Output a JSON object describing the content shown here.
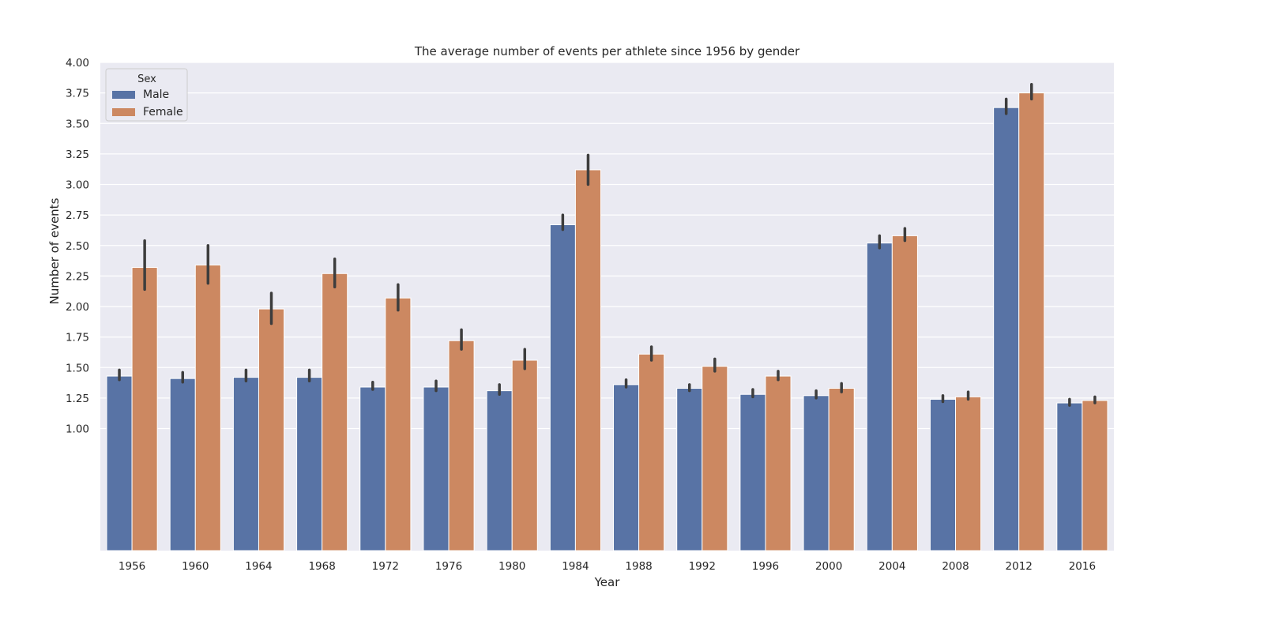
{
  "chart_data": {
    "type": "bar",
    "title": "The average number of events per athlete since 1956 by gender",
    "xlabel": "Year",
    "ylabel": "Number of events",
    "categories": [
      "1956",
      "1960",
      "1964",
      "1968",
      "1972",
      "1976",
      "1980",
      "1984",
      "1988",
      "1992",
      "1996",
      "2000",
      "2004",
      "2008",
      "2012",
      "2016"
    ],
    "series": [
      {
        "name": "Male",
        "color": "#5873a5",
        "values": [
          1.43,
          1.41,
          1.42,
          1.42,
          1.34,
          1.34,
          1.31,
          2.67,
          1.36,
          1.33,
          1.28,
          1.27,
          2.52,
          1.24,
          3.63,
          1.21
        ],
        "ci_low": [
          1.4,
          1.38,
          1.39,
          1.39,
          1.32,
          1.31,
          1.28,
          2.63,
          1.34,
          1.31,
          1.26,
          1.25,
          2.48,
          1.22,
          3.58,
          1.19
        ],
        "ci_high": [
          1.48,
          1.46,
          1.48,
          1.48,
          1.38,
          1.39,
          1.36,
          2.75,
          1.4,
          1.36,
          1.32,
          1.31,
          2.58,
          1.27,
          3.7,
          1.24
        ]
      },
      {
        "name": "Female",
        "color": "#cc8861",
        "values": [
          2.32,
          2.34,
          1.98,
          2.27,
          2.07,
          1.72,
          1.56,
          3.12,
          1.61,
          1.51,
          1.43,
          1.33,
          2.58,
          1.26,
          3.75,
          1.23
        ],
        "ci_low": [
          2.14,
          2.19,
          1.86,
          2.16,
          1.97,
          1.65,
          1.49,
          3.0,
          1.56,
          1.47,
          1.4,
          1.3,
          2.54,
          1.24,
          3.7,
          1.21
        ],
        "ci_high": [
          2.54,
          2.5,
          2.11,
          2.39,
          2.18,
          1.81,
          1.65,
          3.24,
          1.67,
          1.57,
          1.47,
          1.37,
          2.64,
          1.3,
          3.82,
          1.26
        ]
      }
    ],
    "yticks": [
      "1.00",
      "1.25",
      "1.50",
      "1.75",
      "2.00",
      "2.25",
      "2.50",
      "2.75",
      "3.00",
      "3.25",
      "3.50",
      "3.75",
      "4.00"
    ],
    "ylim": [
      0,
      4.0
    ],
    "grid": true,
    "legend": {
      "title": "Sex",
      "position": "top-left"
    },
    "background": "#eaeaf2",
    "error_bar_color": "#3d3d3d"
  }
}
